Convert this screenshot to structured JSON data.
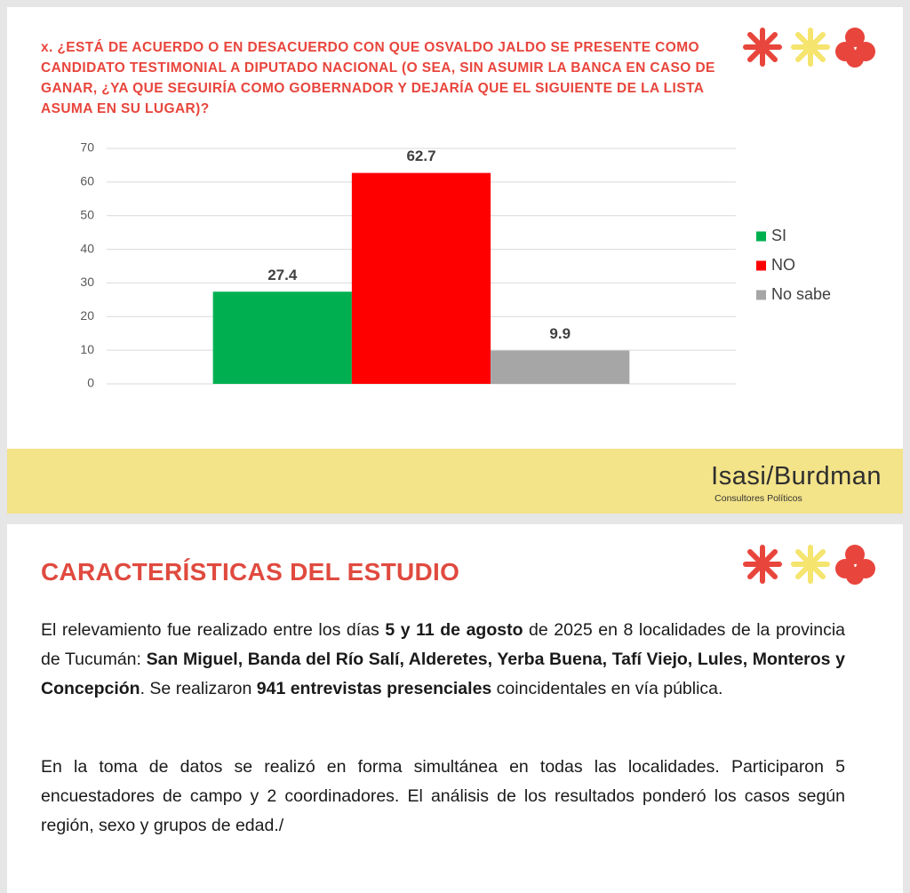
{
  "chart_data": {
    "type": "bar",
    "title": "x. ¿ESTÁ DE ACUERDO O EN DESACUERDO CON QUE OSVALDO JALDO SE PRESENTE COMO CANDIDATO TESTIMONIAL A DIPUTADO NACIONAL (O SEA, SIN ASUMIR LA BANCA EN CASO DE GANAR, ¿YA QUE SEGUIRÍA COMO GOBERNADOR Y DEJARÍA QUE EL SIGUIENTE DE LA LISTA ASUMA EN SU LUGAR)?",
    "categories": [
      null
    ],
    "series": [
      {
        "name": "SI",
        "color": "#00b050",
        "values": [
          27.4
        ]
      },
      {
        "name": "NO",
        "color": "#ff0000",
        "values": [
          62.7
        ]
      },
      {
        "name": "No sabe",
        "color": "#a6a6a6",
        "values": [
          9.9
        ]
      }
    ],
    "ylim": [
      0,
      70
    ],
    "yticks": [
      0,
      10,
      20,
      30,
      40,
      50,
      60,
      70
    ],
    "grid": true,
    "legend": "right"
  },
  "brand": {
    "name": "Isasi/Burdman",
    "subtitle": "Consultores Políticos"
  },
  "study": {
    "title": "CARACTERÍSTICAS DEL ESTUDIO",
    "paragraphs": [
      {
        "runs": [
          {
            "text": "El relevamiento fue realizado entre los días ",
            "bold": false
          },
          {
            "text": "5 y 11 de agosto",
            "bold": true
          },
          {
            "text": " de 2025 en 8 localidades de la provincia de Tucumán: ",
            "bold": false
          },
          {
            "text": "San Miguel, Banda del Río Salí, Alderetes, Yerba Buena, Tafí Viejo, Lules, Monteros y Concepción",
            "bold": true
          },
          {
            "text": ". Se realizaron ",
            "bold": false
          },
          {
            "text": "941 entrevistas presenciales",
            "bold": true
          },
          {
            "text": " coincidentales en vía pública.",
            "bold": false
          }
        ]
      },
      {
        "runs": [
          {
            "text": "En la toma de datos se realizó en forma simultánea en todas las localidades. Participaron 5 encuestadores de campo y 2 coordinadores. El análisis de los resultados ponderó los casos según región, sexo y grupos de edad./",
            "bold": false
          }
        ]
      }
    ]
  }
}
